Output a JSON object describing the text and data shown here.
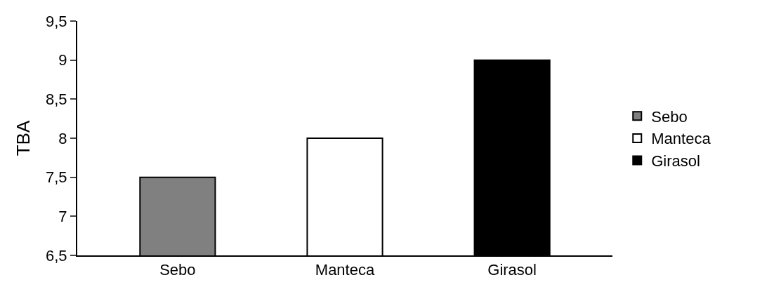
{
  "chart_data": {
    "type": "bar",
    "ylabel": "TBA",
    "categories": [
      "Sebo",
      "Manteca",
      "Girasol"
    ],
    "series": [
      {
        "name": "Sebo",
        "color": "#808080",
        "values": [
          7.5,
          null,
          null
        ]
      },
      {
        "name": "Manteca",
        "color": "#ffffff",
        "values": [
          null,
          8,
          null
        ]
      },
      {
        "name": "Girasol",
        "color": "#000000",
        "values": [
          null,
          null,
          9
        ]
      }
    ],
    "ylim": [
      6.5,
      9.5
    ],
    "yticks": [
      {
        "value": 6.5,
        "label": "6,5"
      },
      {
        "value": 7,
        "label": "7"
      },
      {
        "value": 7.5,
        "label": "7,5"
      },
      {
        "value": 8,
        "label": "8"
      },
      {
        "value": 8.5,
        "label": "8,5"
      },
      {
        "value": 9,
        "label": "9"
      },
      {
        "value": 9.5,
        "label": "9,5"
      }
    ],
    "legend": "right"
  }
}
